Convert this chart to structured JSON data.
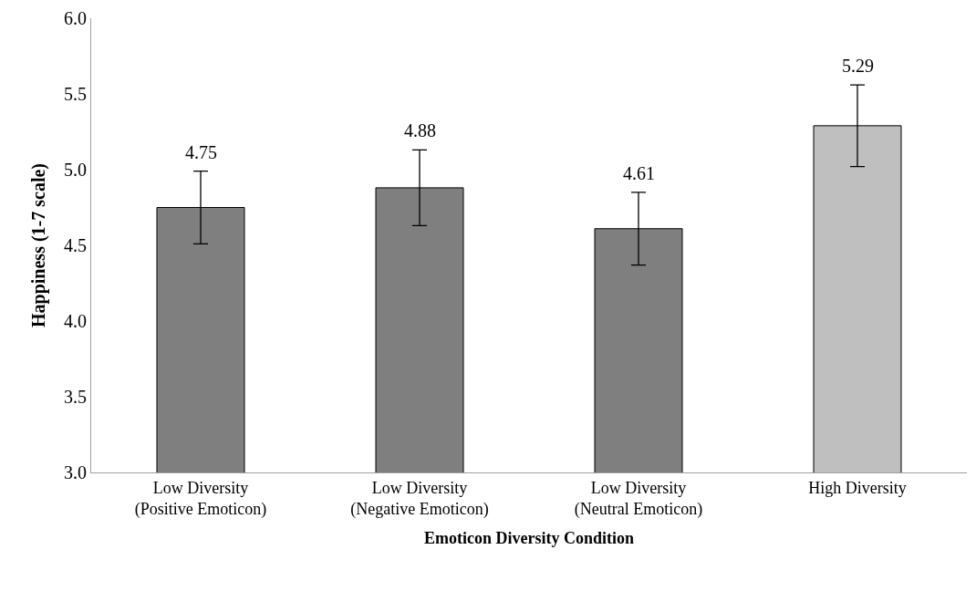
{
  "chart_data": {
    "type": "bar",
    "categories": [
      "Low Diversity\n(Positive Emoticon)",
      "Low Diversity\n(Negative Emoticon)",
      "Low Diversity\n(Neutral Emoticon)",
      "High Diversity"
    ],
    "values": [
      4.75,
      4.88,
      4.61,
      5.29
    ],
    "errors": [
      0.24,
      0.25,
      0.24,
      0.27
    ],
    "colors": [
      "#7f7f7f",
      "#7f7f7f",
      "#7f7f7f",
      "#bfbfbf"
    ],
    "xlabel": "Emoticon Diversity Condition",
    "ylabel": "Happiness (1-7 scale)",
    "ylim": [
      3.0,
      6.0
    ],
    "yticks": [
      {
        "value": 3.0,
        "label": "3.0"
      },
      {
        "value": 3.5,
        "label": "3.5"
      },
      {
        "value": 4.0,
        "label": "4.0"
      },
      {
        "value": 4.5,
        "label": "4.5"
      },
      {
        "value": 5.0,
        "label": "5.0"
      },
      {
        "value": 5.5,
        "label": "5.5"
      },
      {
        "value": 6.0,
        "label": "6.0"
      }
    ],
    "data_labels": true
  }
}
